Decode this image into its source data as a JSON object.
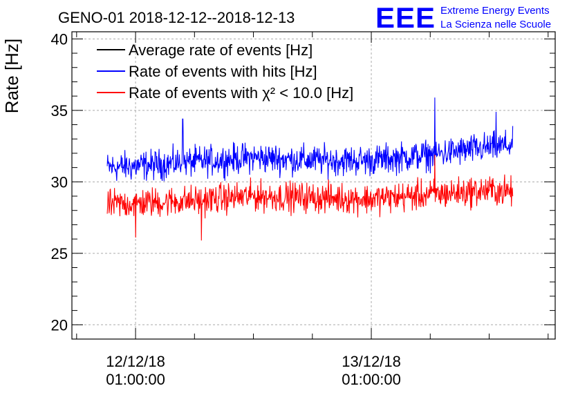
{
  "chart_data": {
    "type": "line",
    "title": "GENO-01 2018-12-12--2018-12-13",
    "ylabel": "Rate [Hz]",
    "xlabel": "",
    "ylim": [
      19,
      40.5
    ],
    "xlim": [
      -0.27,
      1.78
    ],
    "x_units": "days since 2018-12-12 01:00:00",
    "yticks": [
      20,
      25,
      30,
      35,
      40
    ],
    "xticks": [
      {
        "x": 0,
        "line1": "12/12/18",
        "line2": "01:00:00"
      },
      {
        "x": 1,
        "line1": "13/12/18",
        "line2": "01:00:00"
      }
    ],
    "grid": true,
    "legend_position": "top-left",
    "series": [
      {
        "name": "Average rate of events [Hz]",
        "color": "#000000",
        "values": []
      },
      {
        "name": "Rate of events with hits [Hz]",
        "color": "#0000ff",
        "x": [
          -0.12,
          0.0,
          0.25,
          0.5,
          0.75,
          1.0,
          1.25,
          1.5,
          1.6
        ],
        "values": [
          31.0,
          31.1,
          31.4,
          31.7,
          31.5,
          31.5,
          31.9,
          32.4,
          32.6
        ],
        "noise": 0.8,
        "spikes": [
          {
            "x": 0.2,
            "y": 34.4
          },
          {
            "x": 1.27,
            "y": 35.9
          },
          {
            "x": 1.53,
            "y": 34.9
          }
        ]
      },
      {
        "name": "Rate of events with χ² < 10.0 [Hz]",
        "color": "#ff0000",
        "x": [
          -0.12,
          0.0,
          0.25,
          0.5,
          0.75,
          1.0,
          1.25,
          1.5,
          1.6
        ],
        "values": [
          28.4,
          28.5,
          28.7,
          29.0,
          28.9,
          28.8,
          29.1,
          29.4,
          29.3
        ],
        "noise": 0.8,
        "spikes": [
          {
            "x": 0.28,
            "y": 25.9
          },
          {
            "x": 0.0,
            "y": 26.1
          },
          {
            "x": 1.27,
            "y": 31.9
          }
        ]
      }
    ]
  },
  "logo": {
    "text": "EEE",
    "line1": "Extreme Energy Events",
    "line2": "La Scienza nelle Scuole",
    "color": "#0000ff"
  }
}
